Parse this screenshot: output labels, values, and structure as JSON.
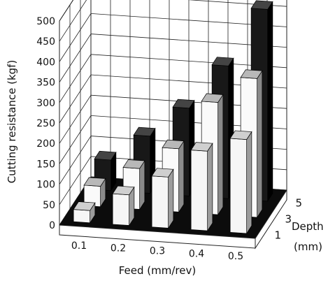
{
  "chart_data": {
    "type": "bar",
    "subtype": "3d-bar",
    "ylabel": "Cutting resistance (kgf)",
    "xlabel": "Feed (mm/rev)",
    "zlabel": "Depth",
    "zlabel_unit": "(mm)",
    "ylim": [
      0,
      500
    ],
    "yticks": [
      "0",
      "50",
      "100",
      "150",
      "200",
      "250",
      "300",
      "350",
      "400",
      "450",
      "500"
    ],
    "categories": [
      "0.1",
      "0.2",
      "0.3",
      "0.4",
      "0.5"
    ],
    "depth_categories": [
      "1",
      "3",
      "5"
    ],
    "series": [
      {
        "depth": "1",
        "values": [
          30,
          75,
          125,
          195,
          230
        ]
      },
      {
        "depth": "3",
        "values": [
          50,
          100,
          155,
          275,
          340
        ]
      },
      {
        "depth": "5",
        "values": [
          75,
          140,
          215,
          325,
          470
        ]
      }
    ],
    "grid": true
  },
  "colors": {
    "depth_1_front": "#f6f6f6",
    "depth_1_top": "#cfcfcf",
    "depth_3_front": "#fafafa",
    "depth_3_top": "#b8b8b8",
    "depth_5_front": "#181818",
    "depth_5_top": "#444444",
    "floor": "#0c0c0c",
    "grid": "#222222"
  }
}
